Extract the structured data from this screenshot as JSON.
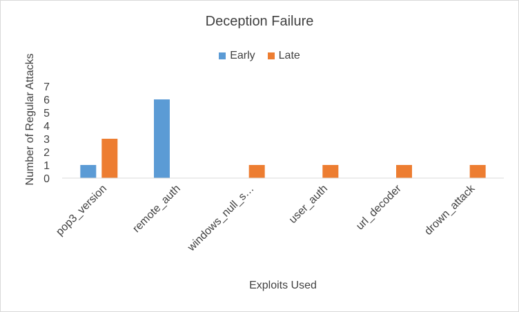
{
  "chart_data": {
    "type": "bar",
    "title": "Deception Failure",
    "xlabel": "Exploits Used",
    "ylabel": "Number of Regular Attacks",
    "categories": [
      "pop3_version",
      "remote_auth",
      "windows_null_s…",
      "user_auth",
      "url_decoder",
      "drown_attack"
    ],
    "series": [
      {
        "name": "Early",
        "values": [
          1,
          6,
          0,
          0,
          0,
          0
        ],
        "color": "#5b9bd5"
      },
      {
        "name": "Late",
        "values": [
          3,
          0,
          1,
          1,
          1,
          1
        ],
        "color": "#ed7d31"
      }
    ],
    "ylim": [
      0,
      7
    ],
    "yticks": [
      0,
      1,
      2,
      3,
      4,
      5,
      6,
      7
    ],
    "grid": false,
    "legend_position": "top"
  }
}
